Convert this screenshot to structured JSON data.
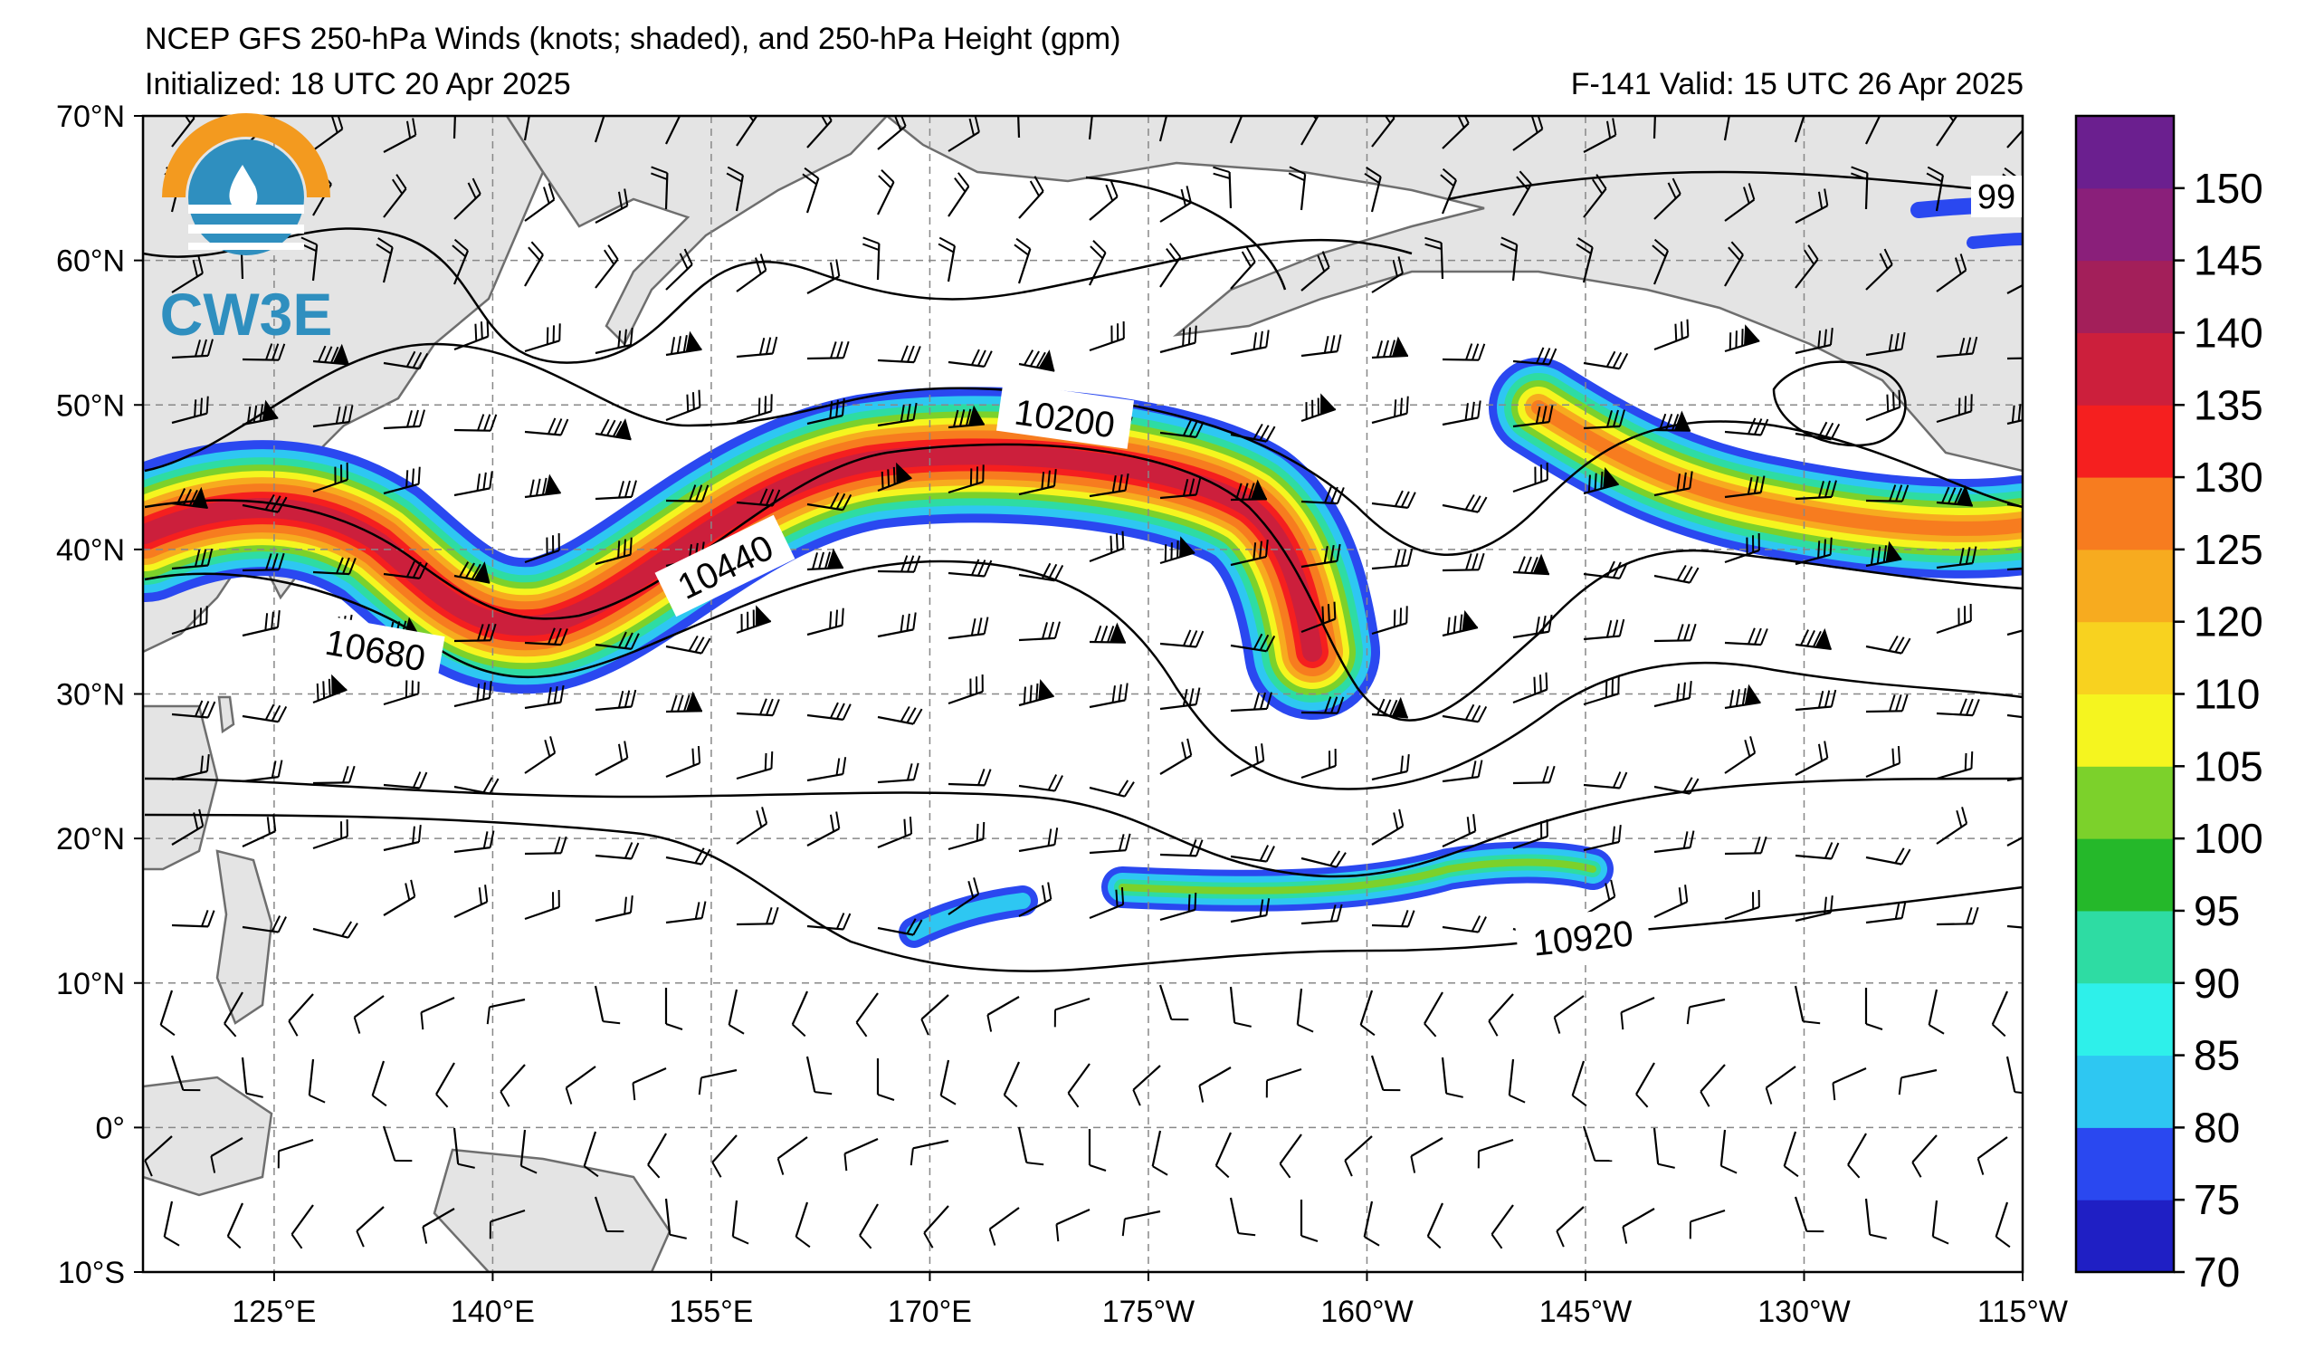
{
  "header": {
    "title": "NCEP GFS 250-hPa Winds (knots; shaded), and 250-hPa Height (gpm)",
    "initialized": "Initialized: 18 UTC 20 Apr 2025",
    "valid": "F-141  Valid: 15 UTC 26 Apr 2025"
  },
  "logo": {
    "text": "CW3E",
    "colors": {
      "orange": "#f39a1f",
      "blue": "#2f8fbf",
      "light_blue": "#6cc3e6"
    }
  },
  "map": {
    "lat_labels": [
      "70°N",
      "60°N",
      "50°N",
      "40°N",
      "30°N",
      "20°N",
      "10°N",
      "0°",
      "10°S"
    ],
    "lon_labels": [
      "125°E",
      "140°E",
      "155°E",
      "170°E",
      "175°W",
      "160°W",
      "145°W",
      "130°W",
      "115°W"
    ],
    "land_color": "#e4e4e4",
    "coast_color": "#6e6e6e",
    "contour_labels": [
      "10200",
      "10440",
      "10680",
      "10920",
      "99"
    ]
  },
  "colorbar": {
    "labels": [
      "70",
      "75",
      "80",
      "85",
      "90",
      "95",
      "100",
      "105",
      "110",
      "120",
      "125",
      "130",
      "135",
      "140",
      "145",
      "150"
    ],
    "colors": [
      "#1f1fc4",
      "#2a48f0",
      "#2ec7f2",
      "#2ef0ea",
      "#2edca3",
      "#25b82a",
      "#7cd12b",
      "#f5f51f",
      "#f8d21f",
      "#f7ab1f",
      "#f77c1f",
      "#f51f1f",
      "#cc1f3c",
      "#a31f5a",
      "#8a1f7a",
      "#6b1f8f"
    ]
  }
}
